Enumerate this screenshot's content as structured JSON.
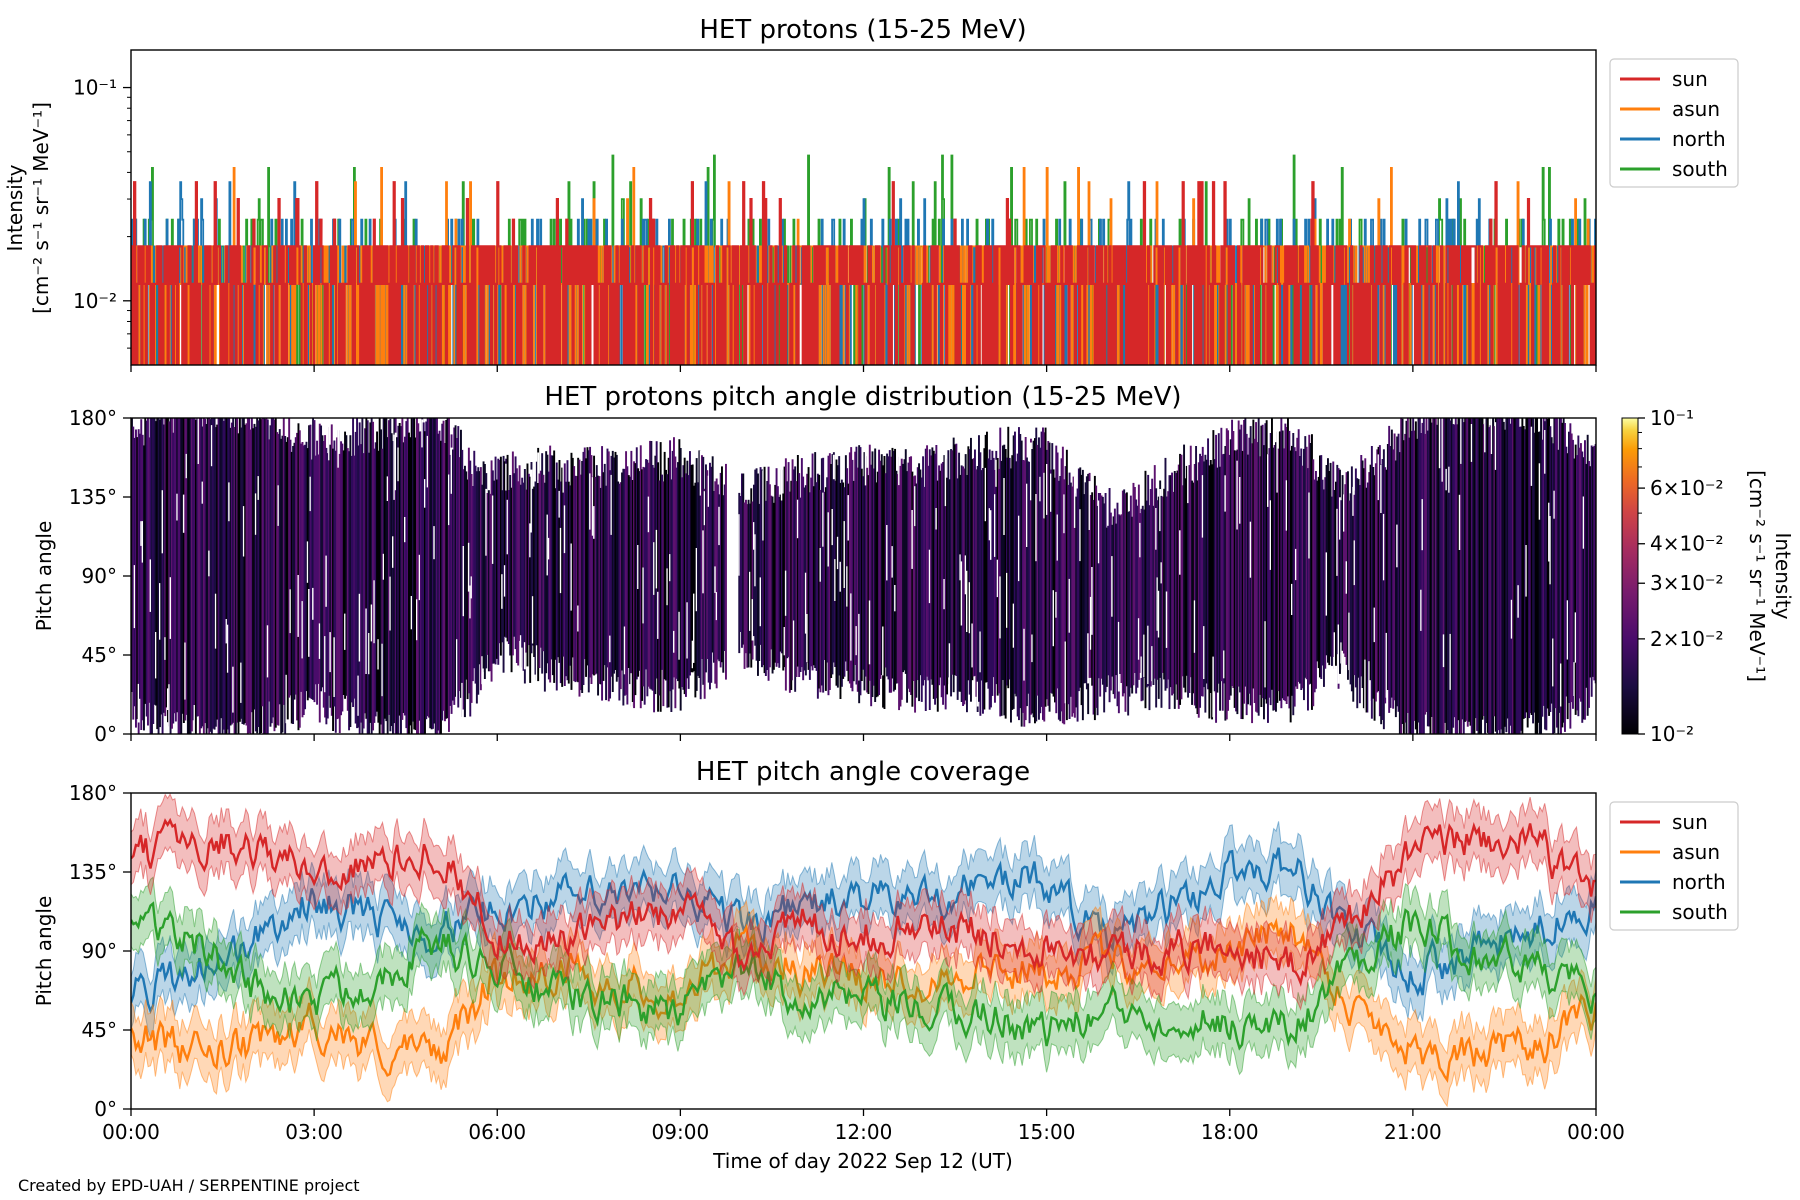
{
  "figure": {
    "xlabel": "Time of day 2022 Sep 12 (UT)",
    "credit": "Created by EPD-UAH / SERPENTINE project",
    "x_ticks": [
      "00:00",
      "03:00",
      "06:00",
      "09:00",
      "12:00",
      "15:00",
      "18:00",
      "21:00",
      "00:00"
    ],
    "x_range_hours": [
      0,
      24
    ]
  },
  "colors": {
    "sun": "#d62728",
    "asun": "#ff7f0e",
    "north": "#1f77b4",
    "south": "#2ca02c"
  },
  "chart_data": [
    {
      "type": "line",
      "title": "HET protons (15-25 MeV)",
      "ylabel": "Intensity",
      "yunit": "[cm⁻² s⁻¹ sr⁻¹ MeV⁻¹]",
      "yscale": "log",
      "ylim": [
        0.005,
        0.15
      ],
      "y_ticks": [
        "10⁻¹",
        "10⁻²"
      ],
      "y_tick_values": [
        0.1,
        0.01
      ],
      "legend": [
        "sun",
        "asun",
        "north",
        "south"
      ],
      "legend_position": "right, outside top",
      "series": [
        {
          "name": "sun",
          "baseline_range": [
            0.006,
            0.018
          ],
          "peak_max": 0.036
        },
        {
          "name": "asun",
          "baseline_range": [
            0.006,
            0.018
          ],
          "peak_max": 0.042
        },
        {
          "name": "north",
          "baseline_range": [
            0.006,
            0.024
          ],
          "peak_max": 0.036
        },
        {
          "name": "south",
          "baseline_range": [
            0.006,
            0.024
          ],
          "peak_max": 0.048
        }
      ]
    },
    {
      "type": "heatmap",
      "title": "HET protons pitch angle distribution (15-25 MeV)",
      "ylabel": "Pitch angle",
      "ylim": [
        0,
        180
      ],
      "y_ticks": [
        "0°",
        "45°",
        "90°",
        "135°",
        "180°"
      ],
      "y_tick_values": [
        0,
        45,
        90,
        135,
        180
      ],
      "colorbar": {
        "label": "Intensity",
        "unit": "[cm⁻² s⁻¹ sr⁻¹ MeV⁻¹]",
        "scale": "log",
        "range": [
          0.01,
          0.1
        ],
        "colormap": "inferno",
        "ticks": [
          "10⁻¹",
          "6×10⁻²",
          "4×10⁻²",
          "3×10⁻²",
          "2×10⁻²",
          "10⁻²"
        ],
        "tick_values": [
          0.1,
          0.06,
          0.04,
          0.03,
          0.02,
          0.01
        ]
      },
      "data_gaps_hours": [
        [
          9.75,
          9.95
        ]
      ]
    },
    {
      "type": "line",
      "title": "HET pitch angle coverage",
      "ylabel": "Pitch angle",
      "ylim": [
        0,
        180
      ],
      "y_ticks": [
        "0°",
        "45°",
        "90°",
        "135°",
        "180°"
      ],
      "y_tick_values": [
        0,
        45,
        90,
        135,
        180
      ],
      "legend": [
        "sun",
        "asun",
        "north",
        "south"
      ],
      "legend_position": "right, outside top",
      "band_halfwidth_deg": 15,
      "x_hours": [
        0,
        1,
        2,
        3,
        4,
        5,
        6,
        7,
        8,
        9,
        10,
        11,
        12,
        13,
        14,
        15,
        16,
        17,
        18,
        19,
        20,
        21,
        22,
        23,
        24
      ],
      "series": [
        {
          "name": "sun",
          "values": [
            140,
            155,
            150,
            135,
            140,
            150,
            100,
            95,
            105,
            115,
            90,
            105,
            100,
            105,
            100,
            95,
            90,
            90,
            95,
            80,
            110,
            145,
            155,
            150,
            125
          ]
        },
        {
          "name": "asun",
          "values": [
            45,
            30,
            35,
            50,
            35,
            30,
            75,
            80,
            70,
            65,
            90,
            80,
            75,
            75,
            80,
            80,
            85,
            85,
            90,
            105,
            60,
            35,
            30,
            35,
            55
          ]
        },
        {
          "name": "north",
          "values": [
            65,
            80,
            95,
            120,
            110,
            100,
            115,
            120,
            120,
            125,
            105,
            115,
            120,
            120,
            130,
            130,
            95,
            115,
            135,
            140,
            100,
            75,
            90,
            100,
            120
          ]
        },
        {
          "name": "south",
          "values": [
            115,
            95,
            70,
            60,
            75,
            95,
            80,
            65,
            60,
            55,
            80,
            65,
            60,
            55,
            55,
            45,
            55,
            55,
            50,
            45,
            85,
            105,
            90,
            80,
            65
          ]
        }
      ]
    }
  ]
}
